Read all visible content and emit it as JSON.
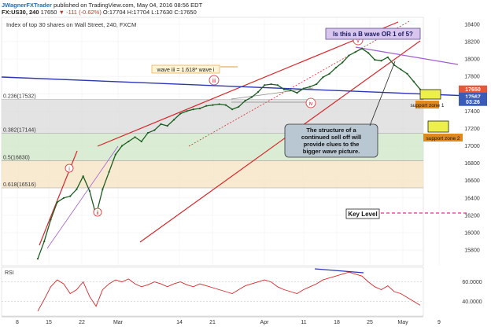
{
  "header": {
    "author": "JWagnerFXTrader",
    "published": "published on TradingView.com, May 04, 2016 08:56 EDT",
    "symbol": "FX:US30, 240",
    "price": "17650",
    "change": "▼ -111 (-0.62%)",
    "ohlc": "O:17704 H:17704 L:17630 C:17650"
  },
  "chart_data": [
    {
      "type": "line",
      "title": "Index of top 30 shares on Wall Street, 240, FXCM",
      "x_ticks": [
        "8",
        "15",
        "22",
        "Mar",
        "14",
        "21",
        "Apr",
        "11",
        "18",
        "25",
        "May",
        "9"
      ],
      "y_ticks": [
        15800,
        16000,
        16200,
        16400,
        16600,
        16800,
        17000,
        17200,
        17400,
        17600,
        17800,
        18000,
        18200,
        18400
      ],
      "ylim": [
        15620,
        18480
      ],
      "series": [
        {
          "x": [
            "Feb 11",
            "Feb 12",
            "Feb 15",
            "Feb 16",
            "Feb 17",
            "Feb 18",
            "Feb 19",
            "Feb 22",
            "Feb 23",
            "Feb 24",
            "Feb 25",
            "Feb 26",
            "Feb 29",
            "Mar 1",
            "Mar 2",
            "Mar 3",
            "Mar 4",
            "Mar 7",
            "Mar 8",
            "Mar 9",
            "Mar 10",
            "Mar 11",
            "Mar 14",
            "Mar 15",
            "Mar 16",
            "Mar 17",
            "Mar 18",
            "Mar 21",
            "Mar 22",
            "Mar 23",
            "Mar 24",
            "Mar 25",
            "Mar 28",
            "Mar 29",
            "Mar 30",
            "Mar 31",
            "Apr 1",
            "Apr 4",
            "Apr 5",
            "Apr 6",
            "Apr 7",
            "Apr 8",
            "Apr 11",
            "Apr 12",
            "Apr 13",
            "Apr 14",
            "Apr 15",
            "Apr 18",
            "Apr 19",
            "Apr 20",
            "Apr 21",
            "Apr 22",
            "Apr 25",
            "Apr 26",
            "Apr 27",
            "Apr 28",
            "Apr 29",
            "May 2",
            "May 3",
            "May 4"
          ],
          "values": [
            15700,
            15900,
            16150,
            16350,
            16400,
            16420,
            16500,
            16650,
            16480,
            16200,
            16500,
            16700,
            16900,
            17000,
            17050,
            17100,
            17050,
            17150,
            17180,
            17250,
            17230,
            17300,
            17370,
            17400,
            17420,
            17430,
            17460,
            17470,
            17480,
            17470,
            17420,
            17450,
            17520,
            17560,
            17620,
            17700,
            17710,
            17700,
            17650,
            17640,
            17610,
            17660,
            17680,
            17710,
            17790,
            17830,
            17900,
            17960,
            18040,
            18080,
            18120,
            18070,
            17990,
            17980,
            18020,
            17930,
            17880,
            17830,
            17740,
            17650
          ]
        }
      ],
      "levels": [
        {
          "label": "0.236(17532)",
          "value": 17532
        },
        {
          "label": "0.382(17144)",
          "value": 17144
        },
        {
          "label": "0.5(16830)",
          "value": 16830
        },
        {
          "label": "0.618(16516)",
          "value": 16516
        }
      ],
      "price_labels": [
        {
          "text": "17650",
          "value": 17650,
          "color": "#e8563a"
        },
        {
          "text": "17567",
          "value": 17567,
          "color": "#3b5bb8"
        },
        {
          "text": "03:26",
          "value": 17505,
          "color": "#3b5bb8"
        }
      ],
      "annotations": {
        "fib_label": "wave iii = 1.618* wave i",
        "question": "Is this a B wave OR 1 of 5?",
        "structure_note": "The structure of a continued sell off will provide clues to the bigger wave picture.",
        "support_zone_1": "support zone 1",
        "support_zone_2": "support zone 2",
        "key_level": "Key Level",
        "wave_i": "i",
        "wave_ii": "ii",
        "wave_iii": "iii",
        "wave_iv": "iv",
        "wave_v": "v"
      }
    },
    {
      "type": "line",
      "title": "RSI",
      "y_ticks": [
        40,
        60
      ],
      "y_tick_labels": [
        "40.0000",
        "60.0000"
      ],
      "ylim": [
        25,
        75
      ],
      "series": [
        {
          "values": [
            30,
            42,
            55,
            62,
            58,
            48,
            52,
            60,
            45,
            35,
            52,
            58,
            62,
            60,
            63,
            58,
            55,
            57,
            60,
            58,
            55,
            58,
            60,
            57,
            55,
            58,
            56,
            54,
            52,
            50,
            48,
            52,
            56,
            58,
            60,
            62,
            60,
            55,
            52,
            50,
            48,
            52,
            55,
            58,
            62,
            64,
            66,
            68,
            70,
            68,
            66,
            60,
            55,
            52,
            56,
            50,
            48,
            44,
            40,
            36
          ]
        }
      ]
    }
  ]
}
